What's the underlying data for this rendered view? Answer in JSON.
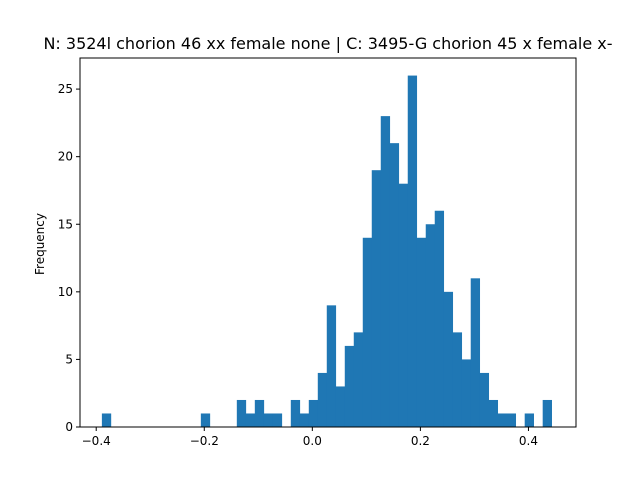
{
  "chart_data": {
    "type": "histogram",
    "title": "N: 3524l chorion 46 xx female none | C: 3495-G chorion 45 x female x-",
    "xlabel": "",
    "ylabel": "Frequency",
    "xlim": [
      -0.43,
      0.488
    ],
    "ylim": [
      0,
      27.3
    ],
    "x_ticks": [
      -0.4,
      -0.2,
      0.0,
      0.2,
      0.4
    ],
    "x_tick_labels": [
      "−0.4",
      "−0.2",
      "0.0",
      "0.2",
      "0.4"
    ],
    "y_ticks": [
      0,
      5,
      10,
      15,
      20,
      25
    ],
    "y_tick_labels": [
      "0",
      "5",
      "10",
      "15",
      "20",
      "25"
    ],
    "bin_start": -0.3895,
    "bin_width": 0.01665,
    "counts": [
      1,
      0,
      0,
      0,
      0,
      0,
      0,
      0,
      0,
      0,
      0,
      1,
      0,
      0,
      0,
      2,
      1,
      2,
      1,
      1,
      0,
      2,
      1,
      2,
      4,
      9,
      3,
      6,
      7,
      14,
      19,
      23,
      21,
      18,
      26,
      14,
      15,
      16,
      10,
      7,
      5,
      11,
      4,
      2,
      1,
      1,
      0,
      1,
      0,
      2
    ],
    "color": "#1f77b4",
    "grid": false
  }
}
